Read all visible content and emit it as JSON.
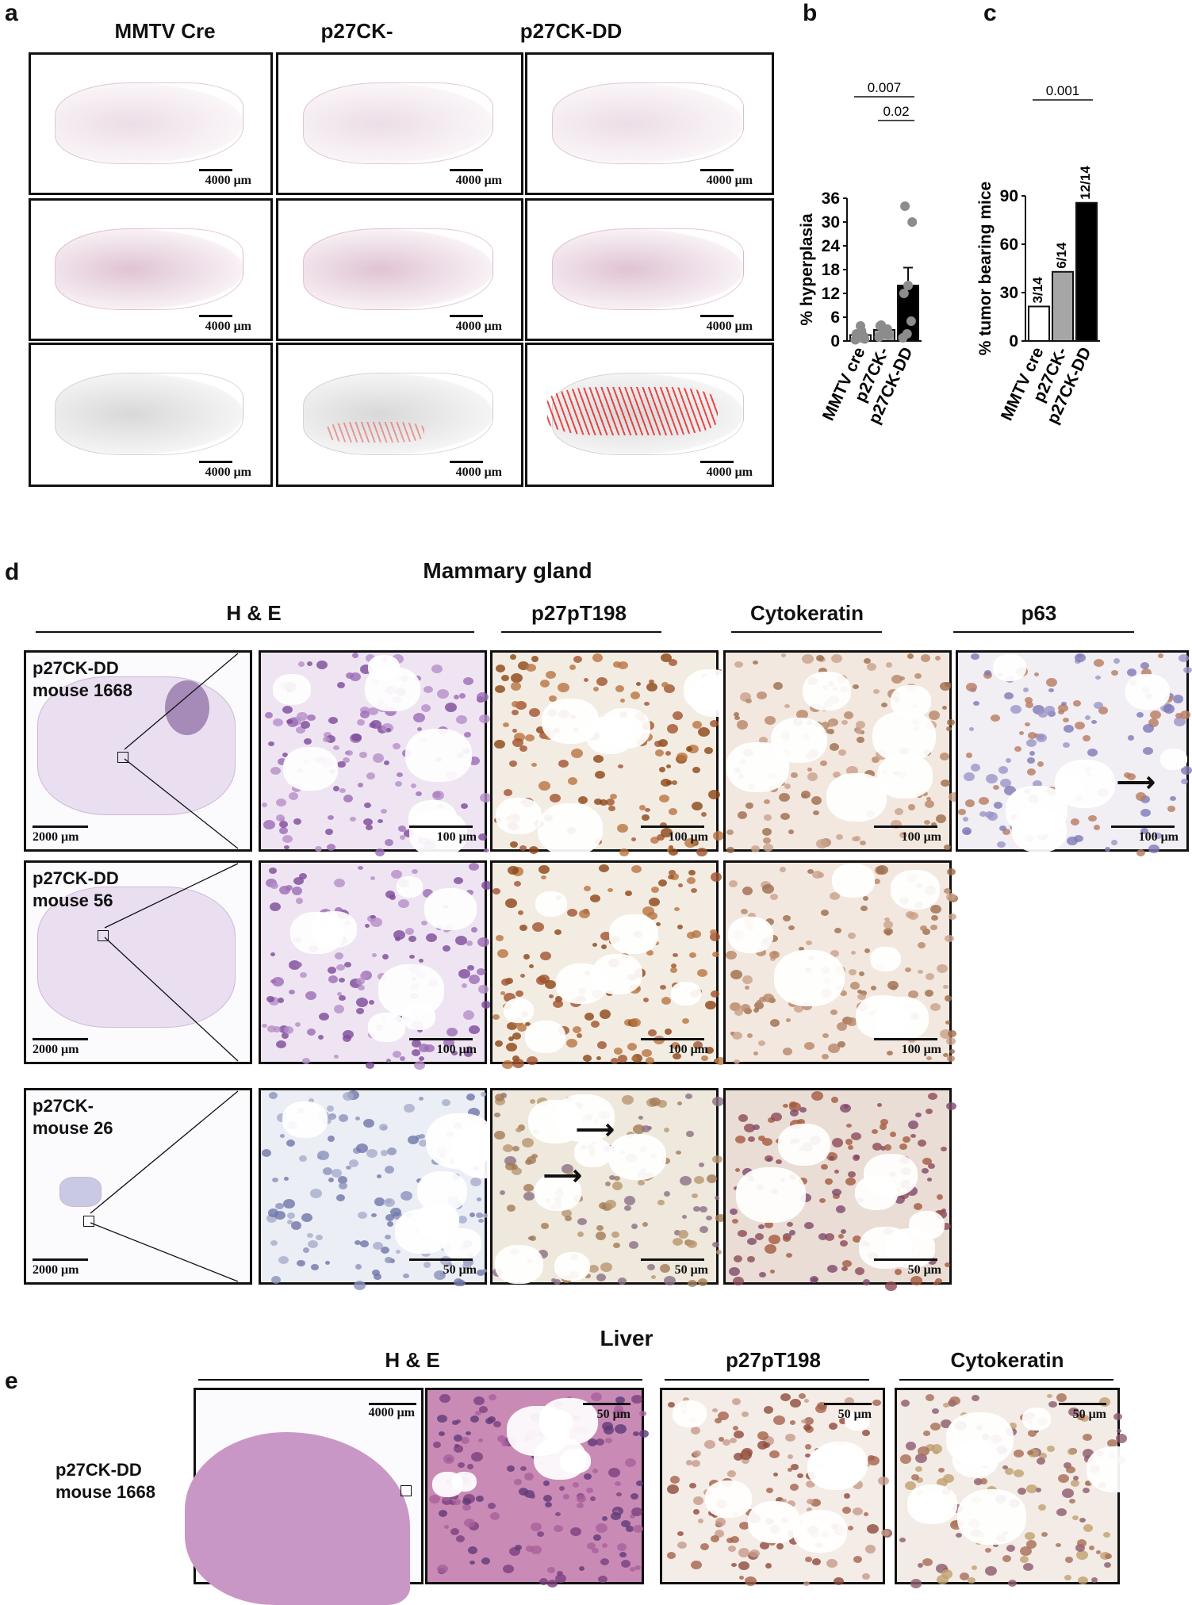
{
  "panels": {
    "a": "a",
    "b": "b",
    "c": "c",
    "d": "d",
    "e": "e"
  },
  "panel_a": {
    "columns": [
      "MMTV Cre",
      "p27CK-",
      "p27CK-DD"
    ],
    "scale": "4000 μm"
  },
  "panel_d": {
    "title": "Mammary gland",
    "groups": [
      "H & E",
      "p27pT198",
      "Cytokeratin",
      "p63"
    ],
    "rows": [
      {
        "l1": "p27CK-DD",
        "l2": "mouse 1668",
        "overview_scale": "2000 μm",
        "zoom_scale": "100 μm"
      },
      {
        "l1": "p27CK-DD",
        "l2": "mouse 56",
        "overview_scale": "2000 μm",
        "zoom_scale": "100 μm"
      },
      {
        "l1": "p27CK-",
        "l2": "mouse 26",
        "overview_scale": "2000 μm",
        "zoom_scale": "50 μm"
      }
    ]
  },
  "panel_e": {
    "title": "Liver",
    "groups": [
      "H & E",
      "p27pT198",
      "Cytokeratin"
    ],
    "l1": "p27CK-DD",
    "l2": "mouse 1668",
    "overview_scale": "4000 μm",
    "zoom_scale": "50 μm"
  },
  "chart_data": [
    {
      "type": "bar",
      "panel": "b",
      "categories": [
        "MMTV cre",
        "p27CK-",
        "p27CK-DD"
      ],
      "values": [
        1.5,
        2.8,
        14
      ],
      "error": [
        null,
        null,
        4.5
      ],
      "points": [
        [
          0.3,
          0.8,
          1.2,
          1.8,
          3.8,
          0.5,
          1.0,
          2.5
        ],
        [
          1.0,
          2.0,
          3.0,
          3.8,
          2.5,
          1.5,
          4.0,
          2.2
        ],
        [
          0.8,
          1.8,
          5.0,
          12.0,
          14.0,
          30.0,
          34.0
        ]
      ],
      "colors": [
        "#ffffff",
        "#a6a6a6",
        "#000000"
      ],
      "ylabel": "% hyperplasia",
      "ylim": [
        0,
        36
      ],
      "yticks": [
        "0",
        "6",
        "12",
        "18",
        "24",
        "30",
        "36"
      ],
      "significance": [
        "0.007",
        "0.02"
      ]
    },
    {
      "type": "bar",
      "panel": "c",
      "categories": [
        "MMTV cre",
        "p27CK-",
        "p27CK-DD"
      ],
      "values": [
        21.4,
        42.9,
        85.7
      ],
      "bar_labels": [
        "3/14",
        "6/14",
        "12/14"
      ],
      "colors": [
        "#ffffff",
        "#a6a6a6",
        "#000000"
      ],
      "ylabel": "% tumor bearing mice",
      "ylim": [
        0,
        90
      ],
      "yticks": [
        "0",
        "30",
        "60",
        "90"
      ],
      "significance": [
        "0.001"
      ]
    }
  ]
}
